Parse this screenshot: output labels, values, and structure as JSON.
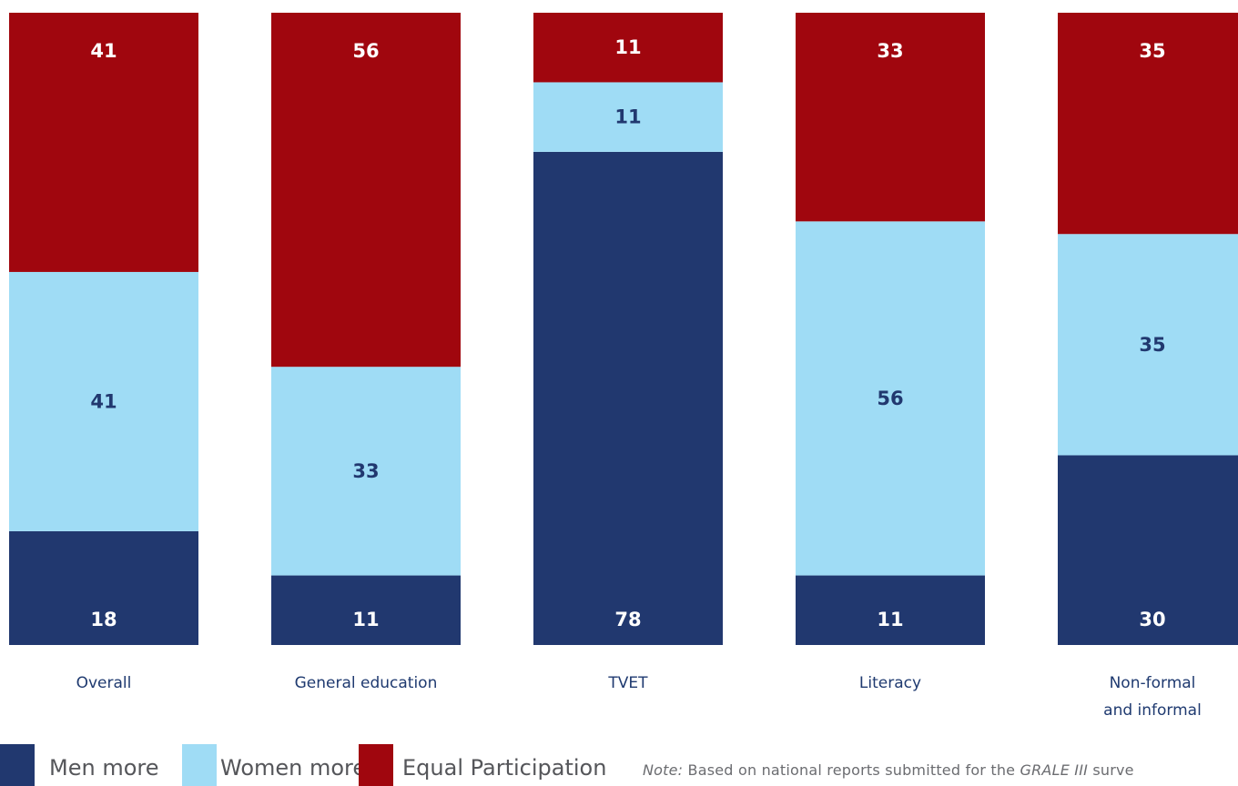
{
  "chart_data": {
    "type": "bar",
    "stacked": true,
    "categories": [
      "Overall",
      "General education",
      "TVET",
      "Literacy",
      "Non-formal and informal"
    ],
    "category_label_lines": [
      [
        "Overall"
      ],
      [
        "General education"
      ],
      [
        "TVET"
      ],
      [
        "Literacy"
      ],
      [
        "Non-formal",
        "and informal"
      ]
    ],
    "series": [
      {
        "name": "Men more",
        "values": [
          18,
          11,
          78,
          11,
          30
        ],
        "color": "#21386f",
        "label_color": "#ffffff"
      },
      {
        "name": "Women more",
        "values": [
          41,
          33,
          11,
          56,
          35
        ],
        "color": "#9fdcf5",
        "label_color": "#21386f"
      },
      {
        "name": "Equal Participation",
        "values": [
          41,
          56,
          11,
          33,
          35
        ],
        "color": "#a0060e",
        "label_color": "#ffffff"
      }
    ],
    "ylim": [
      0,
      100
    ],
    "grid": false,
    "legend_position": "bottom-left"
  },
  "note": {
    "prefix": "Note:",
    "text_before": " Based on national reports submitted for the ",
    "survey_name": "GRALE III",
    "text_after": " surve"
  }
}
